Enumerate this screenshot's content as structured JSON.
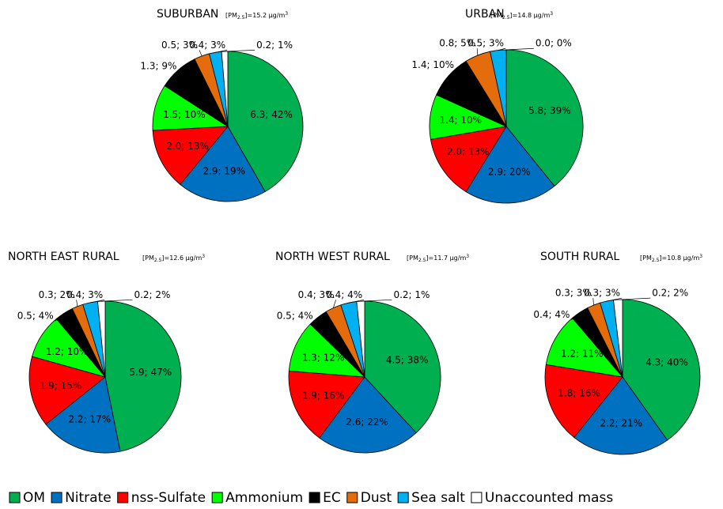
{
  "legend": {
    "categories": [
      "OM",
      "Nitrate",
      "nss-Sulfate",
      "Ammonium",
      "EC",
      "Dust",
      "Sea salt",
      "Unaccounted mass"
    ],
    "colors": [
      "#00b050",
      "#0070c0",
      "#ff0000",
      "#00ff00",
      "#000000",
      "#e46c0a",
      "#00b0f0",
      "#ffffff"
    ]
  },
  "chart_data": [
    {
      "type": "pie",
      "title": "SUBURBAN",
      "annotation": {
        "pre": "[PM",
        "sub": "2.5",
        "post": "]=15.2 µg/m",
        "sup": "3"
      },
      "values": [
        6.3,
        2.9,
        2.0,
        1.5,
        1.3,
        0.5,
        0.4,
        0.2
      ],
      "value_labels": [
        "6.3; 42%",
        "2.9; 19%",
        "2.0; 13%",
        "1.5; 10%",
        "1.3; 9%",
        "0.5; 3%",
        "0.4; 3%",
        "0.2; 1%"
      ]
    },
    {
      "type": "pie",
      "title": "URBAN",
      "annotation": {
        "pre": "[PM",
        "sub": "2.5",
        "post": "]=14.8 µg/m",
        "sup": "3"
      },
      "values": [
        5.8,
        2.9,
        2.0,
        1.4,
        1.4,
        0.8,
        0.5,
        0.0
      ],
      "value_labels": [
        "5.8; 39%",
        "2.9; 20%",
        "2.0; 13%",
        "1.4; 10%",
        "1.4; 10%",
        "0.8; 5%",
        "0.5; 3%",
        "0.0; 0%"
      ]
    },
    {
      "type": "pie",
      "title": "NORTH EAST RURAL",
      "annotation": {
        "pre": "[PM",
        "sub": "2.5",
        "post": "]=12.6 µg/m",
        "sup": "3"
      },
      "values": [
        5.9,
        2.2,
        1.9,
        1.2,
        0.5,
        0.3,
        0.4,
        0.2
      ],
      "value_labels": [
        "5.9; 47%",
        "2.2; 17%",
        "1.9; 15%",
        "1.2; 10%",
        "0.5; 4%",
        "0.3; 2%",
        "0.4; 3%",
        "0.2; 2%"
      ]
    },
    {
      "type": "pie",
      "title": "NORTH WEST RURAL",
      "annotation": {
        "pre": "[PM",
        "sub": "2.5",
        "post": "]=11.7 µg/m",
        "sup": "3"
      },
      "values": [
        4.5,
        2.6,
        1.9,
        1.3,
        0.5,
        0.4,
        0.4,
        0.2
      ],
      "value_labels": [
        "4.5; 38%",
        "2.6; 22%",
        "1.9; 16%",
        "1.3; 12%",
        "0.5; 4%",
        "0.4; 3%",
        "0.4; 4%",
        "0.2; 1%"
      ]
    },
    {
      "type": "pie",
      "title": "SOUTH RURAL",
      "annotation": {
        "pre": "[PM",
        "sub": "2.5",
        "post": "]=10.8 µg/m",
        "sup": "3"
      },
      "values": [
        4.3,
        2.2,
        1.8,
        1.2,
        0.4,
        0.3,
        0.3,
        0.2
      ],
      "value_labels": [
        "4.3; 40%",
        "2.2; 21%",
        "1.8; 16%",
        "1.2; 11%",
        "0.4; 4%",
        "0.3; 3%",
        "0.3; 3%",
        "0.2; 2%"
      ]
    }
  ]
}
